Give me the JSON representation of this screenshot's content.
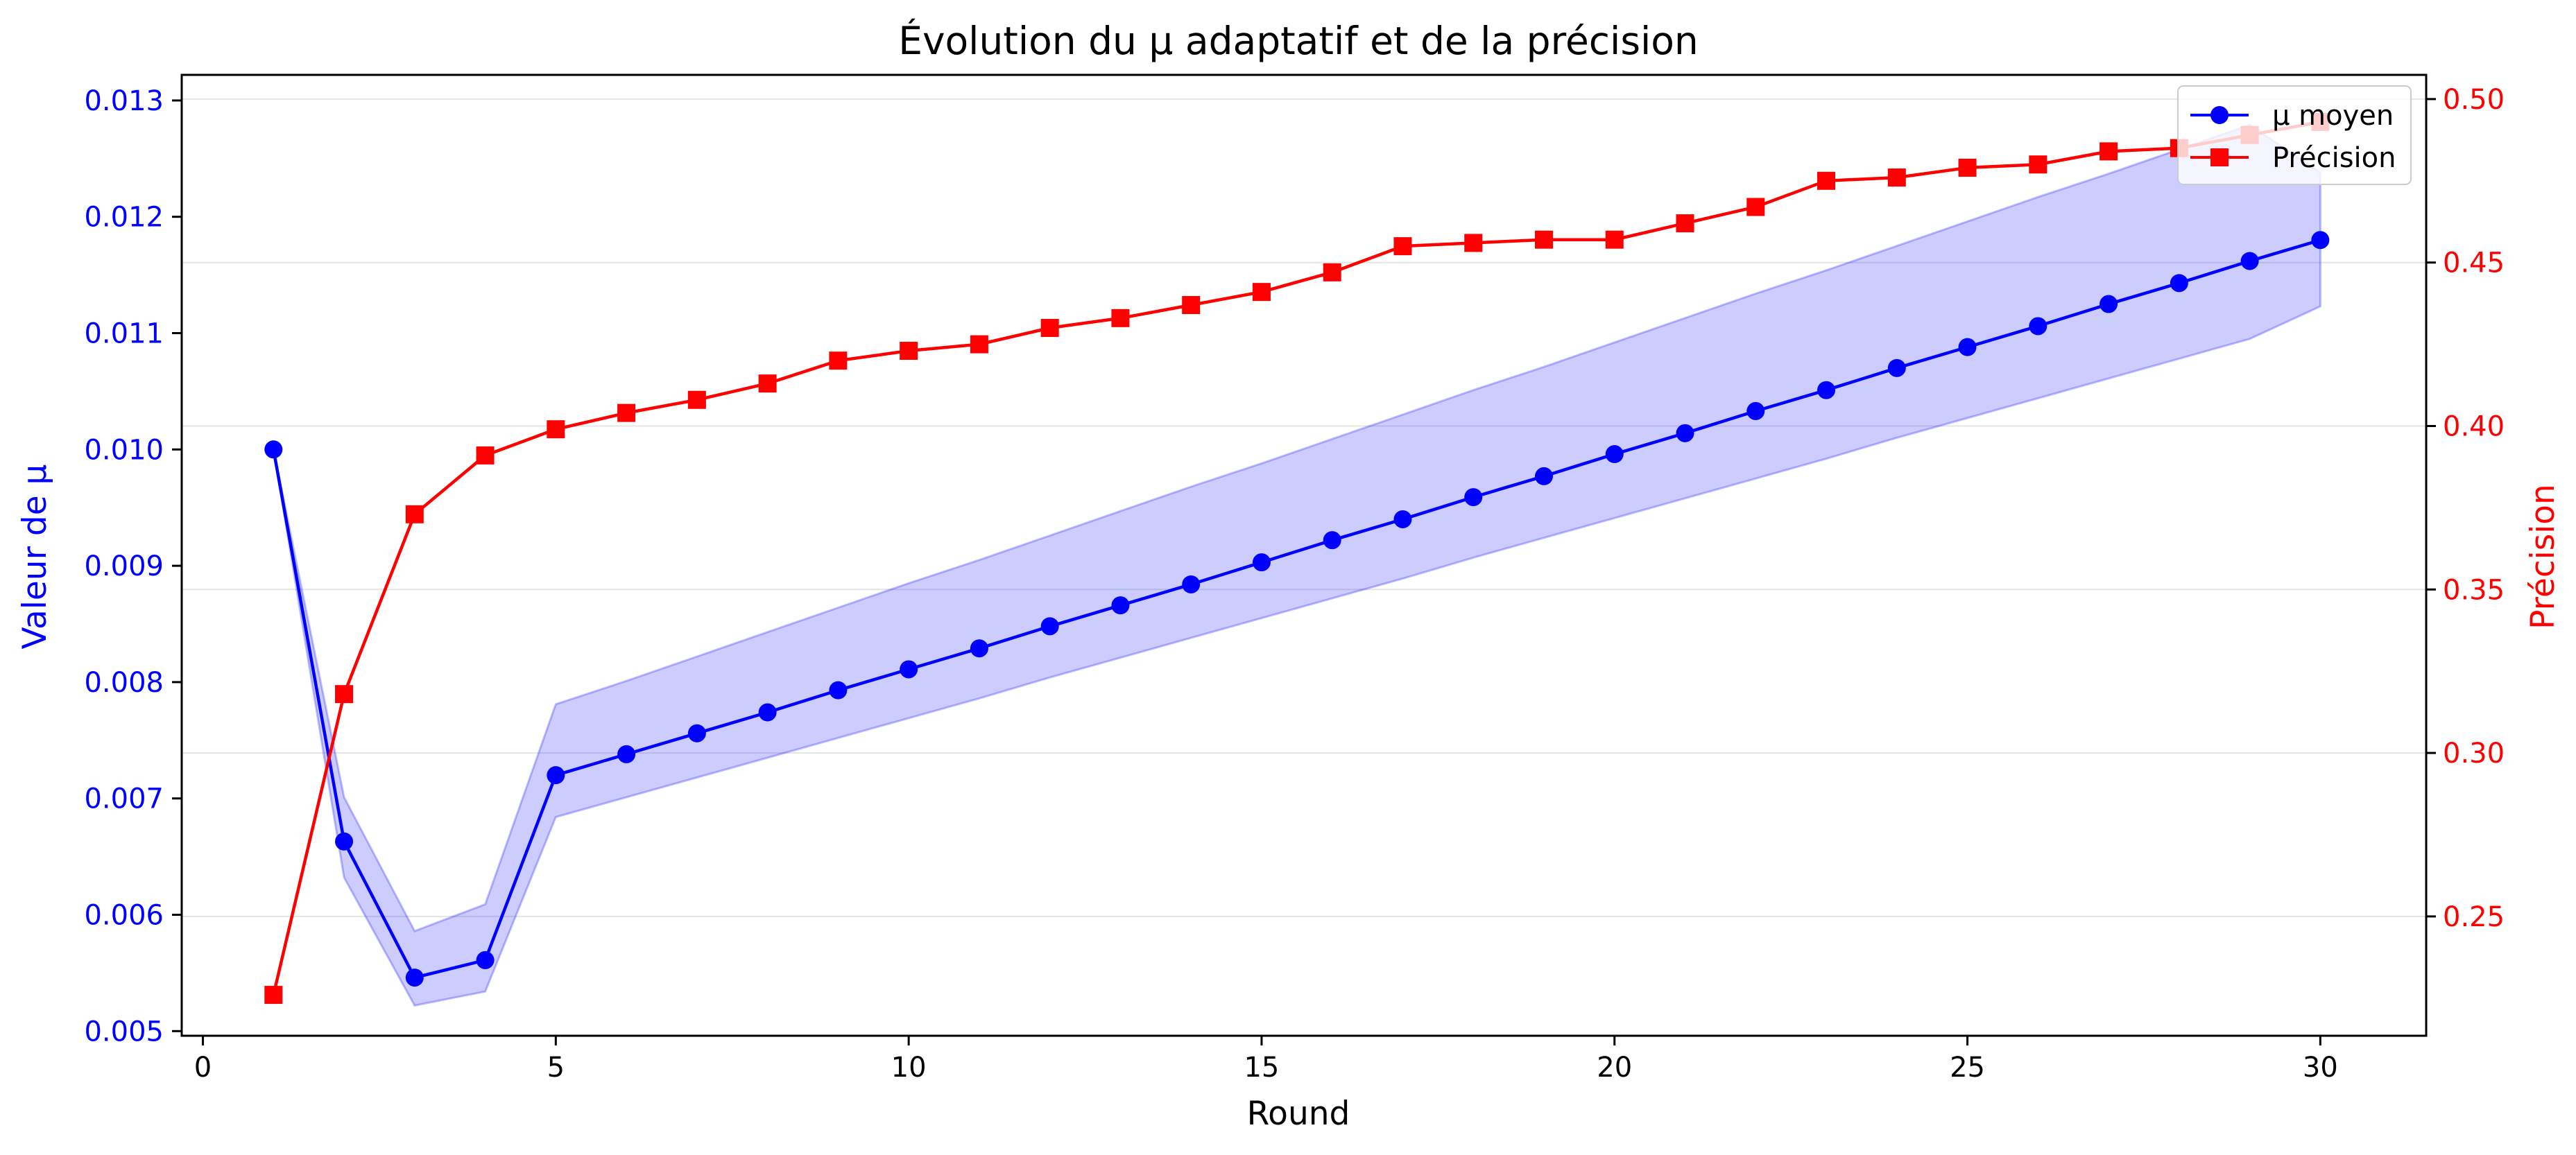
{
  "chart_data": {
    "type": "line",
    "title": "Évolution du µ adaptatif et de la précision",
    "xlabel": "Round",
    "ylabel_left": "Valeur de µ",
    "ylabel_right": "Précision",
    "xlim": [
      -0.3,
      31.5
    ],
    "ylim_left": [
      0.00496,
      0.01322
    ],
    "ylim_right": [
      0.2135,
      0.5074
    ],
    "x_ticks": [
      0,
      5,
      10,
      15,
      20,
      25,
      30
    ],
    "y_left_ticks": [
      "0.005",
      "0.006",
      "0.007",
      "0.008",
      "0.009",
      "0.010",
      "0.011",
      "0.012",
      "0.013"
    ],
    "y_right_ticks": [
      "0.25",
      "0.30",
      "0.35",
      "0.40",
      "0.45",
      "0.50"
    ],
    "grid": "horizontal, right axis",
    "legend_position": "top-right",
    "colors": {
      "mu": "#0000ff",
      "band": "#0000ff",
      "precision": "#ff0000",
      "grid": "#e5e5e5",
      "axis": "#000000"
    },
    "x": [
      1,
      2,
      3,
      4,
      5,
      6,
      7,
      8,
      9,
      10,
      11,
      12,
      13,
      14,
      15,
      16,
      17,
      18,
      19,
      20,
      21,
      22,
      23,
      24,
      25,
      26,
      27,
      28,
      29,
      30
    ],
    "series": [
      {
        "name": "µ moyen",
        "axis": "left",
        "marker": "circle",
        "values": [
          0.01,
          0.00663,
          0.00546,
          0.00561,
          0.0072,
          0.00738,
          0.00756,
          0.00774,
          0.00793,
          0.00811,
          0.00829,
          0.00848,
          0.00866,
          0.00884,
          0.00903,
          0.00922,
          0.0094,
          0.00959,
          0.00977,
          0.00996,
          0.01014,
          0.01033,
          0.01051,
          0.0107,
          0.01088,
          0.01106,
          0.01125,
          0.01143,
          0.01162,
          0.0118
        ]
      },
      {
        "name": "Précision",
        "axis": "right",
        "marker": "square",
        "values": [
          0.226,
          0.318,
          0.373,
          0.391,
          0.399,
          0.404,
          0.408,
          0.413,
          0.42,
          0.423,
          0.425,
          0.43,
          0.433,
          0.437,
          0.441,
          0.447,
          0.455,
          0.456,
          0.457,
          0.457,
          0.462,
          0.467,
          0.475,
          0.476,
          0.479,
          0.48,
          0.484,
          0.485,
          0.489,
          0.493
        ]
      }
    ],
    "band": {
      "axis": "left",
      "lower": [
        0.01,
        0.00632,
        0.00522,
        0.00534,
        0.00684,
        0.00701,
        0.00718,
        0.00735,
        0.00752,
        0.00769,
        0.00786,
        0.00804,
        0.00821,
        0.00838,
        0.00855,
        0.00872,
        0.00889,
        0.00907,
        0.00924,
        0.00941,
        0.00958,
        0.00975,
        0.00992,
        0.0101,
        0.01027,
        0.01044,
        0.01061,
        0.01078,
        0.01095,
        0.01123
      ],
      "upper": [
        0.01,
        0.00701,
        0.00586,
        0.00609,
        0.00781,
        0.00801,
        0.00822,
        0.00843,
        0.00864,
        0.00885,
        0.00905,
        0.00926,
        0.00947,
        0.00968,
        0.00988,
        0.01009,
        0.0103,
        0.01051,
        0.01071,
        0.01092,
        0.01113,
        0.01134,
        0.01154,
        0.01175,
        0.01196,
        0.01217,
        0.01237,
        0.01258,
        0.01279,
        0.01238
      ]
    }
  }
}
